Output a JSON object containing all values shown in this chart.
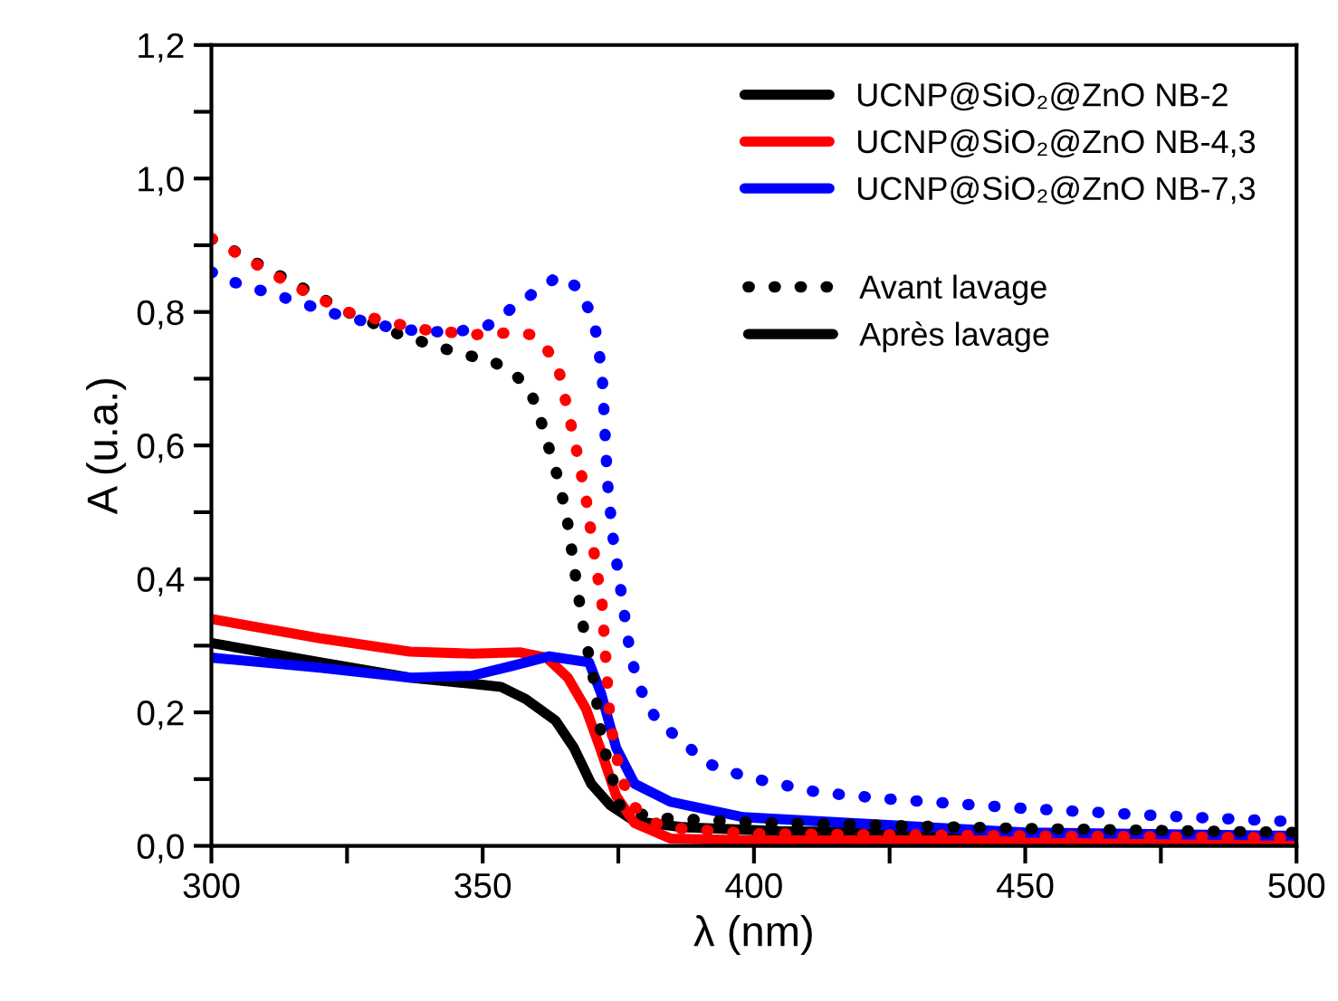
{
  "chart_data": {
    "type": "line",
    "xlabel": "λ (nm)",
    "ylabel": "A (u.a.)",
    "xlim": [
      300,
      500
    ],
    "xticks": [
      300,
      {
        "value": 325,
        "label": null
      },
      350,
      {
        "value": 375,
        "label": null
      },
      400,
      {
        "value": 425,
        "label": null
      },
      450,
      {
        "value": 475,
        "label": null
      },
      500
    ],
    "ylim": [
      0,
      1.2
    ],
    "yticks": [
      {
        "value": 0,
        "label": "0,0"
      },
      {
        "value": 0.1,
        "label": null
      },
      {
        "value": 0.2,
        "label": "0,2"
      },
      {
        "value": 0.3,
        "label": null
      },
      {
        "value": 0.4,
        "label": "0,4"
      },
      {
        "value": 0.5,
        "label": null
      },
      {
        "value": 0.6,
        "label": "0,6"
      },
      {
        "value": 0.7,
        "label": null
      },
      {
        "value": 0.8,
        "label": "0,8"
      },
      {
        "value": 0.9,
        "label": null
      },
      {
        "value": 1.0,
        "label": "1,0"
      },
      {
        "value": 1.1,
        "label": null
      },
      {
        "value": 1.2,
        "label": "1,2"
      }
    ],
    "grid": false,
    "legend": "top right",
    "marker": "none",
    "annotations": [
      "Avant lavage",
      "Après lavage"
    ],
    "series": [
      {
        "name": "UCNP@SiO₂@ZnO NB-2",
        "color": "#000000",
        "line_style": "solid",
        "x": [
          300,
          320,
          336.6,
          348,
          353.4,
          357.9,
          363.4,
          366.8,
          370,
          373.5,
          378,
          386.9,
          404.7,
          450,
          500
        ],
        "values": [
          0.304,
          0.275,
          0.252,
          0.243,
          0.238,
          0.22,
          0.188,
          0.147,
          0.093,
          0.061,
          0.037,
          0.028,
          0.022,
          0.017,
          0.013
        ]
      },
      {
        "name": "UCNP@SiO₂@ZnO NB-4,3",
        "color": "#ff0000",
        "line_style": "solid",
        "x": [
          300,
          320,
          336.6,
          348,
          356.8,
          361.8,
          365.7,
          369,
          371.8,
          374.6,
          378,
          384.6,
          400,
          450,
          500
        ],
        "values": [
          0.34,
          0.311,
          0.291,
          0.288,
          0.29,
          0.282,
          0.252,
          0.206,
          0.143,
          0.075,
          0.034,
          0.011,
          0.008,
          0.008,
          0.008
        ]
      },
      {
        "name": "UCNP@SiO₂@ZnO NB-7,3",
        "color": "#0000ff",
        "line_style": "solid",
        "x": [
          300,
          320,
          336.6,
          348,
          355.6,
          362.3,
          369.6,
          371.8,
          374.6,
          378,
          384.6,
          398,
          450,
          500
        ],
        "values": [
          0.282,
          0.267,
          0.252,
          0.255,
          0.27,
          0.284,
          0.275,
          0.229,
          0.147,
          0.093,
          0.066,
          0.043,
          0.02,
          0.015
        ]
      },
      {
        "color": "#000000",
        "line_style": "dotted",
        "x": [
          300,
          325,
          335,
          345,
          352,
          355.5,
          358.5,
          360,
          362,
          364,
          365.5,
          367,
          368.5,
          370.5,
          372,
          375.5,
          382,
          400,
          450,
          500
        ],
        "values": [
          0.91,
          0.8,
          0.765,
          0.74,
          0.725,
          0.71,
          0.685,
          0.657,
          0.602,
          0.548,
          0.493,
          0.41,
          0.33,
          0.247,
          0.157,
          0.055,
          0.042,
          0.035,
          0.026,
          0.02
        ]
      },
      {
        "color": "#ff0000",
        "line_style": "dotted",
        "x": [
          300,
          315,
          325,
          338.5,
          348.5,
          355.5,
          359,
          362,
          364,
          365.5,
          367,
          369,
          370.5,
          372,
          373.5,
          375.5,
          378,
          383,
          400,
          450,
          500
        ],
        "values": [
          0.91,
          0.84,
          0.8,
          0.774,
          0.766,
          0.769,
          0.766,
          0.742,
          0.714,
          0.659,
          0.605,
          0.523,
          0.441,
          0.362,
          0.184,
          0.102,
          0.058,
          0.028,
          0.018,
          0.015,
          0.012
        ]
      },
      {
        "color": "#0000ff",
        "line_style": "dotted",
        "x": [
          300,
          304,
          314,
          324,
          334.5,
          344.5,
          351,
          357,
          364,
          367.5,
          370.5,
          372,
          372.5,
          373,
          374,
          375.5,
          376.5,
          377,
          378.5,
          382,
          388,
          391,
          396,
          401,
          412,
          425,
          450,
          475,
          500
        ],
        "values": [
          0.86,
          0.845,
          0.82,
          0.794,
          0.774,
          0.769,
          0.78,
          0.815,
          0.854,
          0.837,
          0.789,
          0.709,
          0.627,
          0.545,
          0.463,
          0.381,
          0.326,
          0.299,
          0.244,
          0.189,
          0.148,
          0.125,
          0.11,
          0.099,
          0.08,
          0.07,
          0.056,
          0.045,
          0.036
        ]
      }
    ]
  }
}
